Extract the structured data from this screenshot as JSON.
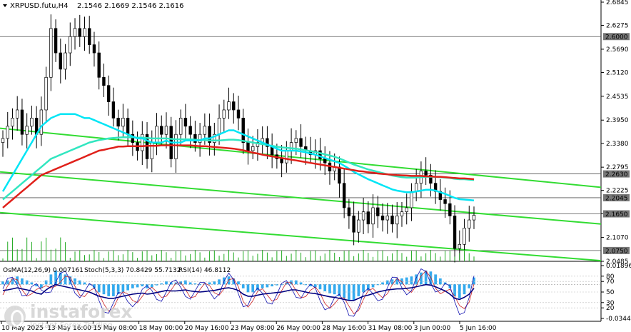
{
  "header": {
    "symbol": "XRPUSD.futu,H4",
    "ohlc": "2.1546 2.1669 2.1546 2.1616"
  },
  "indicator_labels": {
    "osma": "OsMA(12,26,9) 0.007161",
    "stoch": "Stoch(5,3,3) 70.8429 55.7132",
    "rsi": "RSI(14) 46.8112"
  },
  "watermark": {
    "brand": "instaforex",
    "sub": "Instant Forex Trading"
  },
  "colors": {
    "candle": "#000000",
    "ema_red": "#e0201a",
    "ema_cyan": "#00e5f5",
    "ema_aqua": "#31e6c0",
    "channel": "#32dc32",
    "level": "#000000",
    "osma": "#33aaee",
    "stoch_main": "#1010b0",
    "stoch_signal": "#cc2222",
    "rsi": "#000080"
  },
  "chart_data": {
    "type": "candlestick",
    "price_axis": {
      "ticks": [
        "2.6845",
        "2.6275",
        "2.5690",
        "2.5120",
        "2.4535",
        "2.3950",
        "2.3380",
        "2.2795",
        "2.2225",
        "2.1655",
        "2.1070",
        "2.0485"
      ],
      "range": [
        2.0485,
        2.6845
      ]
    },
    "time_axis_labels": [
      "10 May 2025",
      "13 May 16:00",
      "15 May 08:00",
      "18 May 00:00",
      "20 May 16:00",
      "23 May 08:00",
      "26 May 00:00",
      "28 May 16:00",
      "31 May 08:00",
      "3 Jun 00:00",
      "5 Jun 16:00"
    ],
    "levels": [
      {
        "label": "2.6000",
        "value": 2.6
      },
      {
        "label": "2.2630",
        "value": 2.263
      },
      {
        "label": "2.2045",
        "value": 2.2045
      },
      {
        "label": "2.1650",
        "value": 2.165
      },
      {
        "label": "2.0750",
        "value": 2.075
      }
    ],
    "last_price": 2.1616,
    "close": [
      2.35,
      2.38,
      2.4,
      2.42,
      2.36,
      2.38,
      2.4,
      2.36,
      2.42,
      2.5,
      2.62,
      2.56,
      2.52,
      2.56,
      2.6,
      2.62,
      2.6,
      2.62,
      2.58,
      2.56,
      2.5,
      2.48,
      2.44,
      2.4,
      2.38,
      2.4,
      2.36,
      2.34,
      2.32,
      2.36,
      2.3,
      2.34,
      2.38,
      2.36,
      2.38,
      2.3,
      2.36,
      2.4,
      2.38,
      2.36,
      2.34,
      2.36,
      2.38,
      2.34,
      2.36,
      2.4,
      2.42,
      2.44,
      2.42,
      2.4,
      2.34,
      2.32,
      2.33,
      2.34,
      2.35,
      2.33,
      2.31,
      2.3,
      2.29,
      2.32,
      2.34,
      2.35,
      2.33,
      2.32,
      2.31,
      2.32,
      2.3,
      2.29,
      2.27,
      2.28,
      2.24,
      2.18,
      2.16,
      2.12,
      2.15,
      2.17,
      2.14,
      2.18,
      2.16,
      2.15,
      2.16,
      2.14,
      2.16,
      2.17,
      2.18,
      2.22,
      2.24,
      2.27,
      2.26,
      2.24,
      2.22,
      2.2,
      2.19,
      2.16,
      2.08,
      2.09,
      2.13,
      2.15,
      2.1616
    ],
    "ema_red": [
      2.18,
      2.19,
      2.2,
      2.21,
      2.22,
      2.23,
      2.24,
      2.25,
      2.26,
      2.265,
      2.27,
      2.275,
      2.28,
      2.285,
      2.29,
      2.295,
      2.3,
      2.305,
      2.31,
      2.315,
      2.32,
      2.322,
      2.325,
      2.327,
      2.33,
      2.33,
      2.331,
      2.331,
      2.331,
      2.331,
      2.332,
      2.332,
      2.332,
      2.333,
      2.333,
      2.333,
      2.333,
      2.333,
      2.333,
      2.333,
      2.332,
      2.331,
      2.331,
      2.33,
      2.329,
      2.328,
      2.327,
      2.326,
      2.325,
      2.323,
      2.321,
      2.318,
      2.315,
      2.313,
      2.31,
      2.308,
      2.306,
      2.304,
      2.302,
      2.3,
      2.298,
      2.296,
      2.294,
      2.292,
      2.29,
      2.288,
      2.286,
      2.284,
      2.282,
      2.28,
      2.278,
      2.276,
      2.274,
      2.272,
      2.27,
      2.269,
      2.267,
      2.266,
      2.264,
      2.263,
      2.262,
      2.261,
      2.26,
      2.2595,
      2.259,
      2.258,
      2.258,
      2.258,
      2.257,
      2.257,
      2.256,
      2.256,
      2.255,
      2.254,
      2.253,
      2.252,
      2.252,
      2.251,
      2.25
    ],
    "ema_cyan": [
      2.22,
      2.24,
      2.26,
      2.28,
      2.3,
      2.32,
      2.34,
      2.36,
      2.38,
      2.39,
      2.4,
      2.405,
      2.41,
      2.41,
      2.41,
      2.41,
      2.405,
      2.4,
      2.4,
      2.395,
      2.39,
      2.385,
      2.38,
      2.375,
      2.37,
      2.365,
      2.36,
      2.355,
      2.35,
      2.35,
      2.345,
      2.34,
      2.34,
      2.34,
      2.345,
      2.34,
      2.34,
      2.34,
      2.345,
      2.345,
      2.345,
      2.345,
      2.35,
      2.35,
      2.355,
      2.36,
      2.365,
      2.37,
      2.37,
      2.365,
      2.36,
      2.355,
      2.35,
      2.345,
      2.34,
      2.335,
      2.33,
      2.325,
      2.32,
      2.32,
      2.32,
      2.32,
      2.318,
      2.316,
      2.313,
      2.31,
      2.306,
      2.302,
      2.298,
      2.294,
      2.29,
      2.283,
      2.276,
      2.268,
      2.262,
      2.256,
      2.25,
      2.245,
      2.24,
      2.235,
      2.23,
      2.225,
      2.222,
      2.22,
      2.218,
      2.218,
      2.22,
      2.222,
      2.224,
      2.224,
      2.222,
      2.218,
      2.214,
      2.209,
      2.204,
      2.201,
      2.2,
      2.199,
      2.198
    ],
    "ema_aqua": [
      2.2,
      2.21,
      2.22,
      2.23,
      2.24,
      2.25,
      2.26,
      2.27,
      2.28,
      2.29,
      2.3,
      2.305,
      2.31,
      2.315,
      2.32,
      2.325,
      2.33,
      2.335,
      2.34,
      2.343,
      2.346,
      2.348,
      2.35,
      2.351,
      2.352,
      2.353,
      2.353,
      2.353,
      2.352,
      2.352,
      2.351,
      2.35,
      2.35,
      2.35,
      2.35,
      2.349,
      2.348,
      2.348,
      2.348,
      2.348,
      2.347,
      2.346,
      2.346,
      2.345,
      2.345,
      2.345,
      2.346,
      2.347,
      2.347,
      2.346,
      2.344,
      2.342,
      2.34,
      2.338,
      2.336,
      2.334,
      2.332,
      2.33,
      2.328,
      2.327,
      2.326,
      2.325,
      2.323,
      2.321,
      2.319,
      2.317,
      2.314,
      2.311,
      2.308,
      2.305,
      2.301,
      2.296,
      2.291,
      2.286,
      2.282,
      2.278,
      2.274,
      2.271,
      2.268,
      2.265,
      2.262,
      2.259,
      2.257,
      2.255,
      2.254,
      2.254,
      2.254,
      2.255,
      2.256,
      2.256,
      2.256,
      2.255,
      2.254,
      2.253,
      2.251,
      2.25,
      2.25,
      2.249,
      2.248
    ],
    "channel_lines": [
      {
        "name": "upper",
        "points": [
          [
            0,
            2.375
          ],
          [
            1,
            2.23
          ]
        ]
      },
      {
        "name": "mid",
        "points": [
          [
            0,
            2.268
          ],
          [
            1,
            2.14
          ]
        ]
      },
      {
        "name": "lower",
        "points": [
          [
            0,
            2.168
          ],
          [
            1,
            2.05
          ]
        ]
      }
    ],
    "sub_window": {
      "axis_ticks": [
        "0.018962",
        "80",
        "70",
        "50",
        "30",
        "20",
        "-0.034423"
      ],
      "osma": [
        0.003,
        0.004,
        0.006,
        0.008,
        0.006,
        0.004,
        0.002,
        -0.002,
        -0.004,
        0.004,
        0.01,
        0.014,
        0.012,
        0.01,
        0.008,
        0.006,
        0.004,
        0.002,
        0.0,
        -0.004,
        -0.008,
        -0.01,
        -0.012,
        -0.012,
        -0.01,
        -0.008,
        -0.006,
        -0.004,
        -0.003,
        -0.002,
        -0.004,
        -0.003,
        -0.001,
        0.001,
        0.003,
        0.002,
        0.002,
        0.003,
        0.004,
        0.002,
        0.001,
        0.0,
        0.001,
        0.002,
        0.003,
        0.005,
        0.007,
        0.008,
        0.006,
        0.003,
        -0.004,
        -0.008,
        -0.008,
        -0.006,
        -0.004,
        -0.003,
        -0.002,
        -0.001,
        0.0,
        0.002,
        0.004,
        0.004,
        0.002,
        0.0,
        -0.002,
        -0.003,
        -0.005,
        -0.007,
        -0.009,
        -0.01,
        -0.012,
        -0.014,
        -0.016,
        -0.016,
        -0.012,
        -0.008,
        -0.006,
        -0.003,
        0.0,
        0.002,
        0.004,
        0.005,
        0.006,
        0.006,
        0.007,
        0.008,
        0.01,
        0.012,
        0.014,
        0.013,
        0.01,
        0.006,
        0.002,
        -0.004,
        -0.012,
        -0.014,
        -0.01,
        -0.004,
        0.007
      ]
    }
  }
}
